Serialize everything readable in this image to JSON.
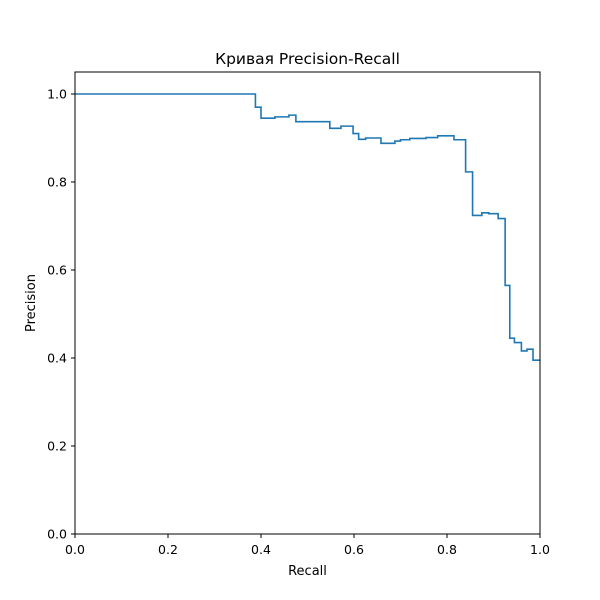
{
  "chart_data": {
    "type": "line",
    "title": "Кривая Precision-Recall",
    "xlabel": "Recall",
    "ylabel": "Precision",
    "xlim": [
      0.0,
      1.0
    ],
    "ylim": [
      0.0,
      1.05
    ],
    "grid": false,
    "line_color": "#1f77b4",
    "x_ticks": [
      {
        "value": 0.0,
        "label": "0.0"
      },
      {
        "value": 0.2,
        "label": "0.2"
      },
      {
        "value": 0.4,
        "label": "0.4"
      },
      {
        "value": 0.6,
        "label": "0.6"
      },
      {
        "value": 0.8,
        "label": "0.8"
      },
      {
        "value": 1.0,
        "label": "1.0"
      }
    ],
    "y_ticks": [
      {
        "value": 0.0,
        "label": "0.0"
      },
      {
        "value": 0.2,
        "label": "0.2"
      },
      {
        "value": 0.4,
        "label": "0.4"
      },
      {
        "value": 0.6,
        "label": "0.6"
      },
      {
        "value": 0.8,
        "label": "0.8"
      },
      {
        "value": 1.0,
        "label": "1.0"
      }
    ],
    "series": [
      {
        "step": "post",
        "x": [
          0.0,
          0.388,
          0.4,
          0.43,
          0.46,
          0.475,
          0.548,
          0.572,
          0.598,
          0.61,
          0.625,
          0.658,
          0.688,
          0.7,
          0.72,
          0.755,
          0.78,
          0.815,
          0.84,
          0.855,
          0.875,
          0.89,
          0.91,
          0.925,
          0.935,
          0.945,
          0.96,
          0.972,
          0.985,
          1.0
        ],
        "y": [
          1.0,
          0.97,
          0.945,
          0.948,
          0.952,
          0.937,
          0.922,
          0.927,
          0.91,
          0.897,
          0.9,
          0.888,
          0.893,
          0.896,
          0.899,
          0.901,
          0.905,
          0.896,
          0.823,
          0.724,
          0.73,
          0.728,
          0.717,
          0.565,
          0.445,
          0.435,
          0.416,
          0.42,
          0.395,
          0.395
        ]
      }
    ]
  }
}
